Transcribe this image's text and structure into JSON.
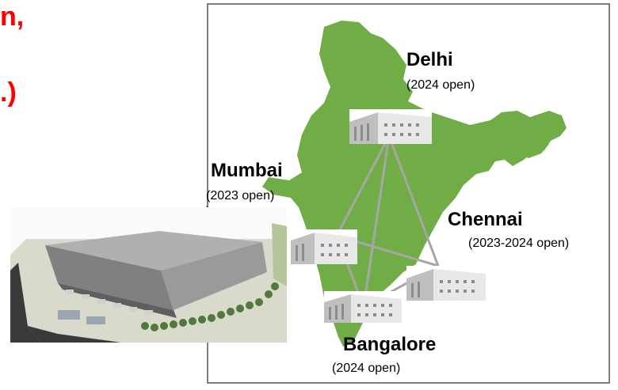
{
  "slide": {
    "fragment_top": "n,",
    "fragment_bottom": ".)"
  },
  "cities": [
    {
      "id": "delhi",
      "name": "Delhi",
      "open": "(2024 open)"
    },
    {
      "id": "mumbai",
      "name": "Mumbai",
      "open": "(2023 open)"
    },
    {
      "id": "chennai",
      "name": "Chennai",
      "open": "(2023-2024 open)"
    },
    {
      "id": "bangalore",
      "name": "Bangalore",
      "open": "(2024 open)"
    }
  ],
  "mumbai_open_overflow": ")",
  "colors": {
    "land": "#70ad47",
    "frame": "#7f7f7f",
    "link_lines": "#a6a6a6",
    "highlight_text": "#ff0000"
  },
  "icons": {
    "warehouse": "warehouse-building-icon",
    "render": "warehouse-3d-render"
  }
}
